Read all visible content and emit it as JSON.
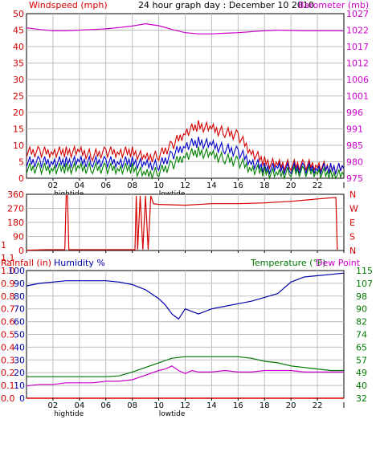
{
  "colors": {
    "wind": "#d40000",
    "gust": "#d40000",
    "wind_avg": "#0000cc",
    "wind_low": "#008000",
    "barometer": "#cc00cc",
    "humidity": "#0000aa",
    "temperature": "#007700",
    "dewpoint": "#cc00cc",
    "rainfall": "#d40000",
    "grid": "#bdbdbd",
    "frame": "#000000"
  },
  "chart_data": [
    {
      "type": "line",
      "title": "24 hour graph day : December 10 2010",
      "left_axis_label": "Windspeed (mph)",
      "right_axis_label": "Barometer (mb)",
      "left_ylim": [
        0,
        50
      ],
      "left_ticks": [
        "0",
        "5",
        "10",
        "15",
        "20",
        "25",
        "30",
        "35",
        "40",
        "45",
        "50"
      ],
      "right_ylim": [
        975,
        1027
      ],
      "right_ticks": [
        "975",
        "980",
        "985",
        "991",
        "996",
        "1001",
        "1006",
        "1012",
        "1017",
        "1022",
        "1027"
      ],
      "x_ticks": [
        "02",
        "04",
        "06",
        "08",
        "10",
        "12",
        "14",
        "16",
        "18",
        "20",
        "22"
      ],
      "x_end_tick": "I",
      "tide_labels": [
        {
          "x": 3.2,
          "text": "hightide"
        },
        {
          "x": 11.0,
          "text": "lowtide"
        }
      ],
      "x_range": [
        0,
        24
      ],
      "grid": true,
      "series": [
        {
          "key": "gust",
          "color_key": "gust",
          "axis": "left",
          "x": [
            0,
            1,
            2,
            3,
            4,
            5,
            6,
            7,
            8,
            9,
            10,
            11,
            12,
            13,
            14,
            15,
            16,
            17,
            18,
            19,
            20,
            21,
            22,
            23,
            24
          ],
          "values": [
            8,
            8,
            8,
            8,
            8,
            7,
            8,
            8,
            8,
            6,
            7,
            10,
            14,
            16,
            15,
            14,
            13,
            8,
            5,
            4,
            4,
            4,
            4,
            3,
            3
          ]
        },
        {
          "key": "wind_avg",
          "color_key": "wind_avg",
          "axis": "left",
          "x": [
            0,
            1,
            2,
            3,
            4,
            5,
            6,
            7,
            8,
            9,
            10,
            11,
            12,
            13,
            14,
            15,
            16,
            17,
            18,
            19,
            20,
            21,
            22,
            23,
            24
          ],
          "values": [
            5,
            5,
            5,
            5,
            5,
            5,
            5,
            5,
            5,
            4,
            4,
            7,
            10,
            11,
            10,
            9,
            8,
            5,
            3,
            3,
            3,
            3,
            3,
            3,
            3
          ]
        },
        {
          "key": "wind_low",
          "color_key": "wind_low",
          "axis": "left",
          "x": [
            0,
            1,
            2,
            3,
            4,
            5,
            6,
            7,
            8,
            9,
            10,
            11,
            12,
            13,
            14,
            15,
            16,
            17,
            18,
            19,
            20,
            21,
            22,
            23,
            24
          ],
          "values": [
            3,
            3,
            3,
            3,
            3,
            3,
            3,
            3,
            3,
            1,
            2,
            4,
            7,
            8,
            7,
            6,
            5,
            3,
            2,
            1,
            2,
            2,
            2,
            1,
            1
          ]
        },
        {
          "key": "barometer",
          "color_key": "barometer",
          "axis": "right",
          "x": [
            0,
            1,
            2,
            3,
            4,
            5,
            6,
            7,
            8,
            9,
            10,
            11,
            12,
            13,
            14,
            15,
            16,
            17,
            18,
            19,
            20,
            21,
            22,
            23,
            24
          ],
          "values": [
            1022.5,
            1022.0,
            1021.6,
            1021.6,
            1021.8,
            1022.0,
            1022.2,
            1022.6,
            1023.1,
            1023.8,
            1023.2,
            1022.0,
            1021.0,
            1020.6,
            1020.6,
            1020.8,
            1021.0,
            1021.3,
            1021.6,
            1021.8,
            1021.7,
            1021.6,
            1021.6,
            1021.6,
            1021.6
          ]
        }
      ]
    },
    {
      "type": "line",
      "left_axis_label": "",
      "left_ylim": [
        0,
        360
      ],
      "left_ticks": [
        "0",
        "90",
        "180",
        "270",
        "360"
      ],
      "right_ticks": [
        "N",
        "S",
        "E",
        "W",
        "N"
      ],
      "x_range": [
        0,
        24
      ],
      "grid": true,
      "series": [
        {
          "key": "wind_direction",
          "color_key": "wind",
          "x": [
            0,
            1.5,
            2.9,
            3.0,
            3.1,
            3.2,
            4,
            6,
            8.2,
            8.3,
            8.4,
            8.6,
            8.8,
            9.0,
            9.2,
            9.4,
            9.6,
            10,
            12,
            14,
            16,
            18,
            20,
            22,
            23.4,
            23.5
          ],
          "values": [
            2,
            5,
            5,
            350,
            350,
            5,
            5,
            5,
            5,
            350,
            5,
            350,
            5,
            350,
            5,
            350,
            300,
            295,
            290,
            300,
            300,
            305,
            315,
            330,
            340,
            5
          ]
        }
      ]
    },
    {
      "type": "line",
      "left_axis_label": "Rainfall (in)",
      "left_axis_label2": "Humidity %",
      "right_axis_label": "Temperature (°F)",
      "right_axis_label2": "Dew Point",
      "rain_ticks": [
        "0.0",
        "0.1",
        "0.2",
        "0.3",
        "0.4",
        "0.5",
        "0.6",
        "0.7",
        "0.8",
        "0.9",
        "1.0",
        "1.1",
        "1"
      ],
      "humidity_ticks": [
        "0",
        "10",
        "20",
        "30",
        "40",
        "50",
        "60",
        "70",
        "80",
        "90",
        "100"
      ],
      "right_ticks": [
        "32",
        "40",
        "49",
        "57",
        "65",
        "74",
        "82",
        "90",
        "98",
        "107",
        "115"
      ],
      "right_ylim": [
        32,
        115
      ],
      "x_ticks": [
        "02",
        "04",
        "06",
        "08",
        "10",
        "12",
        "14",
        "16",
        "18",
        "20",
        "22"
      ],
      "x_end_tick": "I",
      "tide_labels": [
        {
          "x": 3.2,
          "text": "hightide"
        },
        {
          "x": 11.0,
          "text": "lowtide"
        }
      ],
      "x_range": [
        0,
        24
      ],
      "grid": true,
      "series": [
        {
          "key": "humidity",
          "color_key": "humidity",
          "axis": "humidity",
          "x": [
            0,
            1,
            2,
            3,
            4,
            5,
            6,
            7,
            8,
            9,
            10,
            10.5,
            11,
            11.5,
            12,
            12.5,
            13,
            14,
            15,
            16,
            17,
            18,
            19,
            20,
            21,
            22,
            23,
            24
          ],
          "values": [
            88,
            90,
            91,
            92,
            92,
            92,
            92,
            91,
            89,
            85,
            78,
            73,
            66,
            62,
            70,
            68,
            66,
            70,
            72,
            74,
            76,
            79,
            82,
            91,
            95,
            96,
            97,
            98
          ]
        },
        {
          "key": "temperature",
          "color_key": "temperature",
          "axis": "right",
          "x": [
            0,
            1,
            2,
            3,
            4,
            5,
            6,
            7,
            8,
            9,
            10,
            11,
            12,
            13,
            14,
            15,
            16,
            17,
            18,
            19,
            20,
            21,
            22,
            23,
            24
          ],
          "values": [
            46,
            46,
            46,
            46,
            46,
            46,
            46,
            46.5,
            49,
            52,
            55,
            58,
            59,
            59,
            59,
            59,
            59,
            58,
            56,
            55,
            53,
            52,
            51,
            50,
            50
          ]
        },
        {
          "key": "dewpoint",
          "color_key": "dewpoint",
          "axis": "right",
          "x": [
            0,
            1,
            2,
            3,
            4,
            5,
            6,
            7,
            8,
            9,
            10,
            10.5,
            11,
            11.5,
            12,
            12.5,
            13,
            14,
            15,
            16,
            17,
            18,
            19,
            20,
            21,
            22,
            23,
            24
          ],
          "values": [
            40,
            41,
            41,
            42,
            42,
            42,
            43,
            43,
            44,
            47,
            50,
            51,
            53,
            50,
            48,
            50,
            49,
            49,
            50,
            49,
            49,
            50,
            50,
            50,
            49,
            49,
            49,
            49
          ]
        },
        {
          "key": "rainfall",
          "color_key": "rainfall",
          "axis": "rain",
          "x": [
            0,
            24
          ],
          "values": [
            0,
            0
          ]
        }
      ]
    }
  ]
}
